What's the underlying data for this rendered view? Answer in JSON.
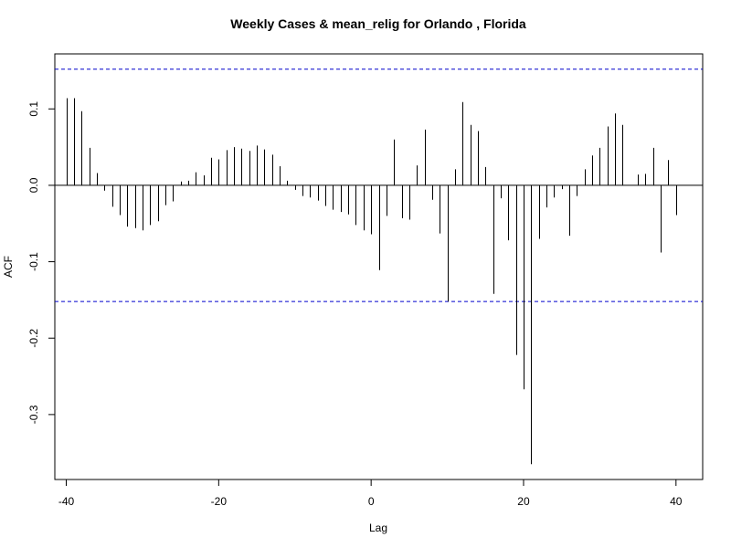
{
  "chart_data": {
    "type": "bar",
    "title": "Weekly Cases & mean_relig for Orlando , Florida",
    "xlabel": "Lag",
    "ylabel": "ACF",
    "xlim": [
      -41.5,
      43.5
    ],
    "ylim": [
      -0.385,
      0.172
    ],
    "x_ticks": [
      -40,
      -20,
      0,
      20,
      40
    ],
    "y_ticks": [
      -0.3,
      -0.2,
      -0.1,
      0.0,
      0.1
    ],
    "y_tick_labels": [
      "-0.3",
      "-0.2",
      "-0.1",
      "0.0",
      "0.1"
    ],
    "x_tick_labels": [
      "-40",
      "-20",
      "0",
      "20",
      "40"
    ],
    "confidence_band": [
      0.152,
      -0.152
    ],
    "confidence_color": "#0000cc",
    "grid": false,
    "lags": [
      -40,
      -39,
      -38,
      -37,
      -36,
      -35,
      -34,
      -33,
      -32,
      -31,
      -30,
      -29,
      -28,
      -27,
      -26,
      -25,
      -24,
      -23,
      -22,
      -21,
      -20,
      -19,
      -18,
      -17,
      -16,
      -15,
      -14,
      -13,
      -12,
      -11,
      -10,
      -9,
      -8,
      -7,
      -6,
      -5,
      -4,
      -3,
      -2,
      -1,
      0,
      1,
      2,
      3,
      4,
      5,
      6,
      7,
      8,
      9,
      10,
      11,
      12,
      13,
      14,
      15,
      16,
      17,
      18,
      19,
      20,
      21,
      22,
      23,
      24,
      25,
      26,
      27,
      28,
      29,
      30,
      31,
      32,
      33,
      34,
      35,
      36,
      37,
      38,
      39,
      40
    ],
    "acf": [
      0.114,
      0.114,
      0.097,
      0.049,
      0.016,
      -0.007,
      -0.028,
      -0.039,
      -0.054,
      -0.056,
      -0.059,
      -0.052,
      -0.047,
      -0.026,
      -0.021,
      0.005,
      0.006,
      0.017,
      0.013,
      0.036,
      0.034,
      0.046,
      0.05,
      0.048,
      0.045,
      0.052,
      0.047,
      0.04,
      0.025,
      0.006,
      -0.006,
      -0.014,
      -0.016,
      -0.02,
      -0.027,
      -0.032,
      -0.035,
      -0.038,
      -0.052,
      -0.059,
      -0.064,
      -0.111,
      -0.04,
      0.06,
      -0.043,
      -0.045,
      0.026,
      0.073,
      -0.019,
      -0.063,
      -0.152,
      0.021,
      0.109,
      0.079,
      0.071,
      0.024,
      -0.142,
      -0.017,
      -0.072,
      -0.222,
      -0.267,
      -0.365,
      -0.07,
      -0.029,
      -0.016,
      -0.005,
      -0.066,
      -0.014,
      0.021,
      0.039,
      0.049,
      0.077,
      0.094,
      0.079,
      0.0,
      0.014,
      0.015,
      0.049,
      -0.088,
      0.033,
      -0.039
    ]
  }
}
